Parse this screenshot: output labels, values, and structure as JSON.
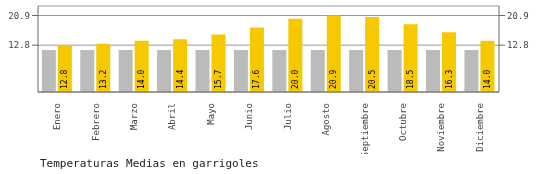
{
  "chart_data": {
    "type": "bar",
    "title": "Temperaturas Medias en garrigoles",
    "categories": [
      "Enero",
      "Febrero",
      "Marzo",
      "Abril",
      "Mayo",
      "Junio",
      "Julio",
      "Agosto",
      "Septiembre",
      "Octubre",
      "Noviembre",
      "Diciembre"
    ],
    "series": [
      {
        "color": "#BBBBBB",
        "values": [
          11.5,
          11.5,
          11.5,
          11.5,
          11.5,
          11.5,
          11.5,
          11.5,
          11.5,
          11.5,
          11.5,
          11.5
        ]
      },
      {
        "color": "#F5C800",
        "values": [
          12.8,
          13.2,
          14.0,
          14.4,
          15.7,
          17.6,
          20.0,
          20.9,
          20.5,
          18.5,
          16.3,
          14.0
        ],
        "value_labels": [
          "12.8",
          "13.2",
          "14.0",
          "14.4",
          "15.7",
          "17.6",
          "20.0",
          "20.9",
          "20.5",
          "18.5",
          "16.3",
          "14.0"
        ],
        "data_labels": true
      }
    ],
    "ylim": [
      0,
      23.5
    ],
    "yticks": [
      12.8,
      20.9
    ],
    "y2lim": [
      0,
      23.5
    ],
    "y2ticks": [
      12.8,
      20.9
    ],
    "grid": true
  }
}
